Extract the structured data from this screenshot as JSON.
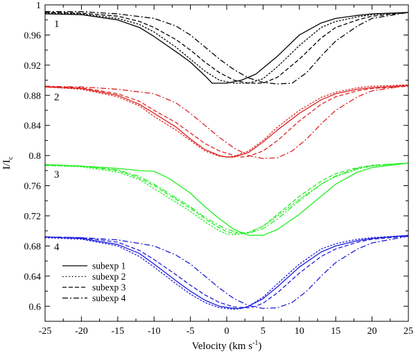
{
  "chart_data": {
    "type": "line",
    "title": "",
    "xlabel": "Velocity (km s",
    "xlabel_sup": "-1",
    "xlabel_close": ")",
    "ylabel": "I/I",
    "ylabel_sub": "c",
    "xlim": [
      -25,
      25
    ],
    "ylim": [
      0.58,
      1.0
    ],
    "xticks": [
      -25,
      -20,
      -15,
      -10,
      -5,
      0,
      5,
      10,
      15,
      20,
      25
    ],
    "yticks": [
      0.6,
      0.64,
      0.68,
      0.72,
      0.76,
      0.8,
      0.84,
      0.88,
      0.92,
      0.96,
      1.0
    ],
    "ytick_labels": [
      "0.6",
      "0.64",
      "0.68",
      "0.72",
      "0.76",
      "0.8",
      "0.84",
      "0.88",
      "0.92",
      "0.96",
      "1"
    ],
    "legend": {
      "placement": "bottom-left",
      "entries": [
        {
          "label": "subexp 1",
          "style": "solid"
        },
        {
          "label": "subexp 2",
          "style": "dotted"
        },
        {
          "label": "subexp 3",
          "style": "dashed"
        },
        {
          "label": "subexp 4",
          "style": "dashdot"
        }
      ]
    },
    "groups": [
      {
        "label": "1",
        "color": "#000000",
        "series": [
          {
            "name": "subexp 1",
            "style": "solid",
            "x": [
              -25,
              -20,
              -15,
              -12,
              -10,
              -7,
              -5,
              -3,
              -2,
              0,
              2,
              4,
              7,
              10,
              13,
              15,
              18,
              20,
              25
            ],
            "y": [
              0.988,
              0.987,
              0.98,
              0.97,
              0.958,
              0.938,
              0.924,
              0.906,
              0.896,
              0.896,
              0.9,
              0.908,
              0.932,
              0.96,
              0.976,
              0.982,
              0.986,
              0.988,
              0.99
            ]
          },
          {
            "name": "subexp 2",
            "style": "dotted",
            "x": [
              -25,
              -20,
              -15,
              -12,
              -10,
              -7,
              -5,
              -3,
              -1,
              1,
              3,
              5,
              7,
              10,
              13,
              15,
              18,
              20,
              25
            ],
            "y": [
              0.989,
              0.988,
              0.982,
              0.974,
              0.964,
              0.944,
              0.928,
              0.912,
              0.9,
              0.896,
              0.896,
              0.902,
              0.918,
              0.946,
              0.97,
              0.978,
              0.984,
              0.987,
              0.99
            ]
          },
          {
            "name": "subexp 3",
            "style": "dashed",
            "x": [
              -25,
              -20,
              -15,
              -12,
              -10,
              -7,
              -5,
              -3,
              -1,
              1,
              3,
              5,
              7,
              10,
              13,
              15,
              18,
              20,
              25
            ],
            "y": [
              0.99,
              0.989,
              0.985,
              0.978,
              0.97,
              0.954,
              0.94,
              0.924,
              0.91,
              0.9,
              0.896,
              0.896,
              0.904,
              0.928,
              0.956,
              0.97,
              0.98,
              0.985,
              0.99
            ]
          },
          {
            "name": "subexp 4",
            "style": "dashdot",
            "x": [
              -25,
              -20,
              -15,
              -10,
              -7,
              -5,
              -3,
              -1,
              1,
              3,
              5,
              7,
              9,
              11,
              13,
              15,
              18,
              20,
              25
            ],
            "y": [
              0.991,
              0.991,
              0.988,
              0.982,
              0.972,
              0.96,
              0.944,
              0.928,
              0.914,
              0.903,
              0.897,
              0.895,
              0.896,
              0.91,
              0.932,
              0.952,
              0.972,
              0.982,
              0.99
            ]
          }
        ]
      },
      {
        "label": "2",
        "color": "#dd2222",
        "series": [
          {
            "name": "subexp 1",
            "style": "solid",
            "x": [
              -25,
              -20,
              -15,
              -12,
              -10,
              -7,
              -5,
              -3,
              -1,
              0,
              1,
              3,
              5,
              7,
              10,
              13,
              15,
              18,
              20,
              25
            ],
            "y": [
              0.891,
              0.889,
              0.88,
              0.868,
              0.856,
              0.838,
              0.822,
              0.808,
              0.8,
              0.798,
              0.798,
              0.804,
              0.818,
              0.834,
              0.856,
              0.874,
              0.882,
              0.888,
              0.89,
              0.893
            ]
          },
          {
            "name": "subexp 2",
            "style": "dotted",
            "x": [
              -25,
              -20,
              -15,
              -12,
              -10,
              -7,
              -5,
              -3,
              -1,
              0,
              1,
              3,
              5,
              7,
              10,
              13,
              15,
              18,
              20,
              25
            ],
            "y": [
              0.891,
              0.888,
              0.878,
              0.866,
              0.852,
              0.834,
              0.82,
              0.806,
              0.799,
              0.798,
              0.799,
              0.806,
              0.82,
              0.838,
              0.86,
              0.877,
              0.884,
              0.89,
              0.892,
              0.894
            ]
          },
          {
            "name": "subexp 3",
            "style": "dashed",
            "x": [
              -25,
              -20,
              -15,
              -12,
              -10,
              -7,
              -5,
              -3,
              -1,
              1,
              2,
              3,
              5,
              7,
              10,
              13,
              15,
              18,
              20,
              25
            ],
            "y": [
              0.892,
              0.89,
              0.882,
              0.872,
              0.86,
              0.844,
              0.83,
              0.816,
              0.806,
              0.8,
              0.798,
              0.799,
              0.806,
              0.82,
              0.846,
              0.868,
              0.878,
              0.886,
              0.889,
              0.892
            ]
          },
          {
            "name": "subexp 4",
            "style": "dashdot",
            "x": [
              -25,
              -20,
              -15,
              -10,
              -7,
              -5,
              -3,
              -1,
              1,
              3,
              5,
              7,
              9,
              11,
              13,
              15,
              18,
              20,
              25
            ],
            "y": [
              0.892,
              0.891,
              0.888,
              0.882,
              0.87,
              0.856,
              0.84,
              0.824,
              0.81,
              0.8,
              0.796,
              0.797,
              0.806,
              0.822,
              0.842,
              0.86,
              0.878,
              0.886,
              0.893
            ]
          }
        ]
      },
      {
        "label": "3",
        "color": "#22ee22",
        "series": [
          {
            "name": "subexp 1",
            "style": "solid",
            "x": [
              -25,
              -20,
              -15,
              -12,
              -10,
              -8,
              -5,
              -3,
              -1,
              1,
              3,
              5,
              7,
              10,
              13,
              15,
              18,
              20,
              25
            ],
            "y": [
              0.788,
              0.786,
              0.783,
              0.78,
              0.779,
              0.77,
              0.75,
              0.732,
              0.716,
              0.702,
              0.694,
              0.694,
              0.702,
              0.722,
              0.746,
              0.762,
              0.778,
              0.784,
              0.79
            ]
          },
          {
            "name": "subexp 2",
            "style": "dotted",
            "x": [
              -25,
              -20,
              -15,
              -12,
              -10,
              -8,
              -5,
              -3,
              -1,
              0,
              1,
              3,
              5,
              7,
              10,
              13,
              15,
              18,
              20,
              25
            ],
            "y": [
              0.787,
              0.785,
              0.778,
              0.768,
              0.756,
              0.744,
              0.726,
              0.712,
              0.7,
              0.696,
              0.695,
              0.697,
              0.706,
              0.72,
              0.742,
              0.762,
              0.772,
              0.782,
              0.786,
              0.79
            ]
          },
          {
            "name": "subexp 3",
            "style": "dashed",
            "x": [
              -25,
              -20,
              -15,
              -12,
              -10,
              -8,
              -5,
              -3,
              -1,
              0,
              1,
              3,
              5,
              7,
              10,
              13,
              15,
              18,
              20,
              25
            ],
            "y": [
              0.787,
              0.786,
              0.78,
              0.77,
              0.76,
              0.748,
              0.73,
              0.716,
              0.704,
              0.699,
              0.697,
              0.698,
              0.706,
              0.722,
              0.746,
              0.766,
              0.776,
              0.784,
              0.787,
              0.79
            ]
          },
          {
            "name": "subexp 4",
            "style": "dashdot",
            "x": [
              -25,
              -20,
              -15,
              -12,
              -10,
              -8,
              -5,
              -3,
              -1,
              0,
              2,
              3,
              5,
              7,
              10,
              13,
              15,
              18,
              20,
              25
            ],
            "y": [
              0.788,
              0.786,
              0.781,
              0.772,
              0.762,
              0.75,
              0.732,
              0.718,
              0.707,
              0.702,
              0.697,
              0.697,
              0.703,
              0.716,
              0.74,
              0.762,
              0.773,
              0.783,
              0.787,
              0.79
            ]
          }
        ]
      },
      {
        "label": "4",
        "color": "#1a1adc",
        "series": [
          {
            "name": "subexp 1",
            "style": "solid",
            "x": [
              -25,
              -20,
              -15,
              -12,
              -10,
              -7,
              -5,
              -3,
              -1,
              1,
              2,
              3,
              5,
              7,
              10,
              13,
              15,
              18,
              20,
              25
            ],
            "y": [
              0.692,
              0.69,
              0.682,
              0.67,
              0.656,
              0.634,
              0.62,
              0.608,
              0.6,
              0.597,
              0.597,
              0.6,
              0.61,
              0.626,
              0.652,
              0.672,
              0.68,
              0.687,
              0.69,
              0.694
            ]
          },
          {
            "name": "subexp 2",
            "style": "dotted",
            "x": [
              -25,
              -20,
              -15,
              -12,
              -10,
              -7,
              -5,
              -3,
              -1,
              1,
              2,
              3,
              5,
              7,
              10,
              13,
              15,
              18,
              20,
              25
            ],
            "y": [
              0.691,
              0.689,
              0.68,
              0.666,
              0.652,
              0.63,
              0.616,
              0.605,
              0.598,
              0.596,
              0.597,
              0.6,
              0.612,
              0.63,
              0.656,
              0.676,
              0.683,
              0.689,
              0.691,
              0.694
            ]
          },
          {
            "name": "subexp 3",
            "style": "dashed",
            "x": [
              -25,
              -20,
              -15,
              -12,
              -10,
              -7,
              -5,
              -3,
              -1,
              1,
              3,
              4,
              5,
              7,
              10,
              13,
              15,
              18,
              20,
              25
            ],
            "y": [
              0.692,
              0.691,
              0.685,
              0.674,
              0.662,
              0.642,
              0.628,
              0.615,
              0.605,
              0.599,
              0.598,
              0.6,
              0.604,
              0.618,
              0.644,
              0.666,
              0.676,
              0.685,
              0.689,
              0.693
            ]
          },
          {
            "name": "subexp 4",
            "style": "dashdot",
            "x": [
              -25,
              -20,
              -15,
              -10,
              -7,
              -5,
              -3,
              -1,
              1,
              3,
              5,
              7,
              9,
              11,
              13,
              15,
              18,
              20,
              25
            ],
            "y": [
              0.692,
              0.691,
              0.688,
              0.68,
              0.668,
              0.656,
              0.64,
              0.624,
              0.61,
              0.601,
              0.597,
              0.598,
              0.605,
              0.62,
              0.64,
              0.658,
              0.676,
              0.684,
              0.693
            ]
          }
        ]
      }
    ]
  }
}
